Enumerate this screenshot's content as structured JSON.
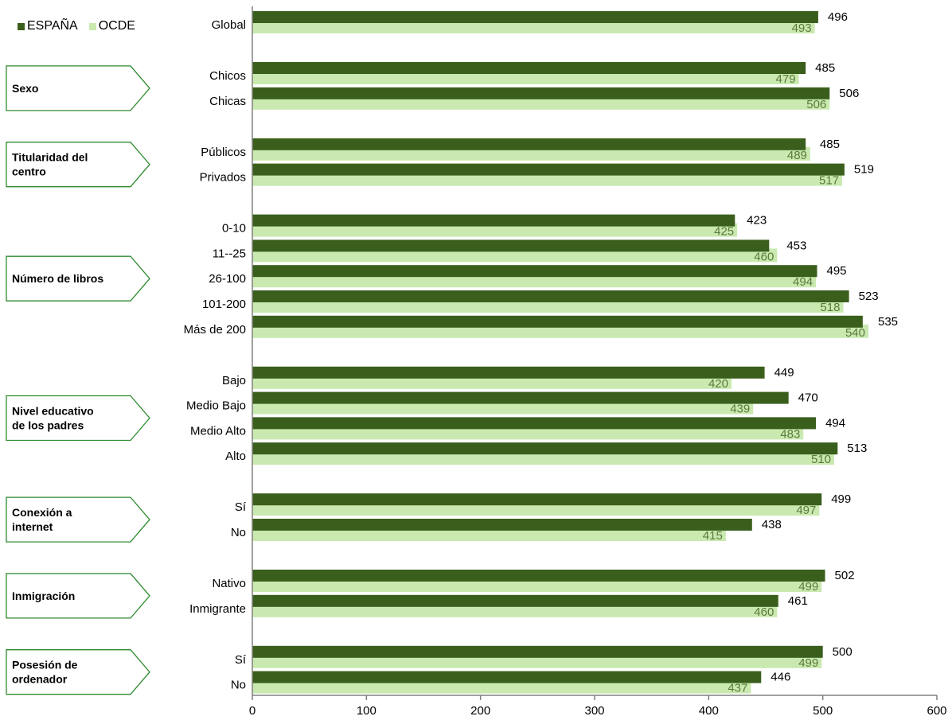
{
  "legend": {
    "spain": "ESPAÑA",
    "oecd": "OCDE"
  },
  "colors": {
    "spain": "#3a5f1c",
    "oecd": "#c9e9b0",
    "oecd_label": "#5a7a3a",
    "group_border": "#2e8b2e",
    "axis": "#808080"
  },
  "chart_data": {
    "type": "bar",
    "orientation": "horizontal",
    "xlim": [
      0,
      600
    ],
    "xticks": [
      "0",
      "100",
      "200",
      "300",
      "400",
      "500",
      "600"
    ],
    "series": [
      {
        "name": "ESPAÑA"
      },
      {
        "name": "OCDE"
      }
    ],
    "groups": [
      {
        "label": "",
        "categories": [
          {
            "label": "Global",
            "spain": 496,
            "oecd": 493
          }
        ]
      },
      {
        "label": "Sexo",
        "categories": [
          {
            "label": "Chicos",
            "spain": 485,
            "oecd": 479
          },
          {
            "label": "Chicas",
            "spain": 506,
            "oecd": 506
          }
        ]
      },
      {
        "label": "Titularidad del centro",
        "categories": [
          {
            "label": "Públicos",
            "spain": 485,
            "oecd": 489
          },
          {
            "label": "Privados",
            "spain": 519,
            "oecd": 517
          }
        ]
      },
      {
        "label": "Número de libros",
        "categories": [
          {
            "label": "0-10",
            "spain": 423,
            "oecd": 425
          },
          {
            "label": "11--25",
            "spain": 453,
            "oecd": 460
          },
          {
            "label": "26-100",
            "spain": 495,
            "oecd": 494
          },
          {
            "label": "101-200",
            "spain": 523,
            "oecd": 518
          },
          {
            "label": "Más de 200",
            "spain": 535,
            "oecd": 540
          }
        ]
      },
      {
        "label": "Nivel educativo de los padres",
        "categories": [
          {
            "label": "Bajo",
            "spain": 449,
            "oecd": 420
          },
          {
            "label": "Medio Bajo",
            "spain": 470,
            "oecd": 439
          },
          {
            "label": "Medio Alto",
            "spain": 494,
            "oecd": 483
          },
          {
            "label": "Alto",
            "spain": 513,
            "oecd": 510
          }
        ]
      },
      {
        "label": "Conexión a internet",
        "categories": [
          {
            "label": "Sí",
            "spain": 499,
            "oecd": 497
          },
          {
            "label": "No",
            "spain": 438,
            "oecd": 415
          }
        ]
      },
      {
        "label": "Inmigración",
        "categories": [
          {
            "label": "Nativo",
            "spain": 502,
            "oecd": 499
          },
          {
            "label": "Inmigrante",
            "spain": 461,
            "oecd": 460
          }
        ]
      },
      {
        "label": "Posesión de ordenador",
        "categories": [
          {
            "label": "Sí",
            "spain": 500,
            "oecd": 499
          },
          {
            "label": "No",
            "spain": 446,
            "oecd": 437
          }
        ]
      }
    ]
  }
}
